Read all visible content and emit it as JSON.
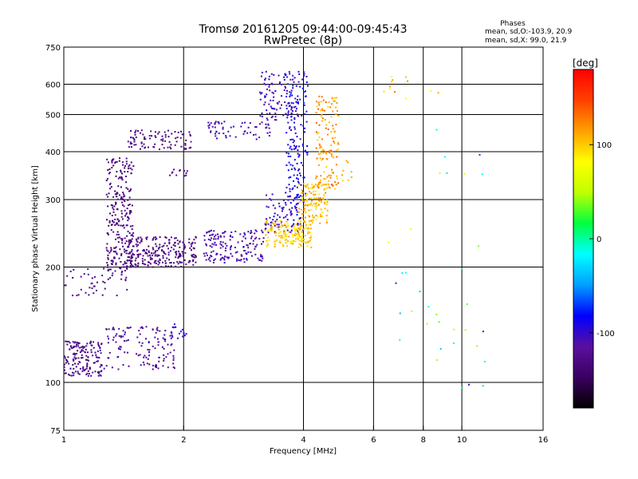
{
  "chart_data": {
    "type": "scatter",
    "title": "Tromsø 20161205 09:44:00-09:45:43",
    "subtitle": "RwPretec (8p)",
    "xlabel": "Frequency [MHz]",
    "ylabel": "Stationary phase Virtual Height [km]",
    "x_scale": "log",
    "y_scale": "log",
    "xlim": [
      1,
      16
    ],
    "ylim": [
      75,
      750
    ],
    "x_ticks": [
      1,
      2,
      4,
      6,
      8,
      10,
      16
    ],
    "y_ticks": [
      75,
      100,
      200,
      300,
      400,
      500,
      600,
      750
    ],
    "x_grid": [
      2,
      4,
      6,
      8,
      10
    ],
    "y_grid": [
      100,
      200,
      300,
      400,
      500,
      600
    ],
    "grid": true,
    "phase_stats": {
      "header": "Phases",
      "line1": "mean, sd,O:-103.9, 20.9",
      "line2": "mean, sd,X:  99.0, 21.9"
    },
    "colorbar": {
      "label": "[deg]",
      "min": -180,
      "max": 180,
      "ticks": [
        100,
        0,
        -100
      ],
      "colors": [
        "#000000",
        "#3b0060",
        "#5a0fa0",
        "#0000ff",
        "#00a0ff",
        "#00ffff",
        "#00ff40",
        "#c0ff00",
        "#ffff00",
        "#ffa000",
        "#ff4000",
        "#ff0000"
      ]
    },
    "clusters": [
      {
        "x": [
          1.0,
          1.25
        ],
        "y": [
          104,
          128
        ],
        "phase": [
          -145,
          -105
        ],
        "n": 160
      },
      {
        "x": [
          1.25,
          1.9
        ],
        "y": [
          108,
          140
        ],
        "phase": [
          -135,
          -100
        ],
        "n": 130
      },
      {
        "x": [
          1.85,
          2.05
        ],
        "y": [
          130,
          142
        ],
        "phase": [
          -115,
          -90
        ],
        "n": 18
      },
      {
        "x": [
          1.0,
          1.45
        ],
        "y": [
          168,
          200
        ],
        "phase": [
          -140,
          -115
        ],
        "n": 50
      },
      {
        "x": [
          1.28,
          1.5
        ],
        "y": [
          195,
          385
        ],
        "phase": [
          -145,
          -120
        ],
        "n": 260
      },
      {
        "x": [
          1.45,
          2.15
        ],
        "y": [
          200,
          240
        ],
        "phase": [
          -145,
          -115
        ],
        "n": 230
      },
      {
        "x": [
          1.45,
          2.1
        ],
        "y": [
          405,
          455
        ],
        "phase": [
          -140,
          -115
        ],
        "n": 90
      },
      {
        "x": [
          1.8,
          2.05
        ],
        "y": [
          345,
          360
        ],
        "phase": [
          -130,
          -110
        ],
        "n": 12
      },
      {
        "x": [
          2.25,
          3.2
        ],
        "y": [
          205,
          250
        ],
        "phase": [
          -125,
          -95
        ],
        "n": 160
      },
      {
        "x": [
          2.3,
          3.3
        ],
        "y": [
          430,
          480
        ],
        "phase": [
          -120,
          -95
        ],
        "n": 60
      },
      {
        "x": [
          3.1,
          3.9
        ],
        "y": [
          480,
          650
        ],
        "phase": [
          -120,
          -90
        ],
        "n": 110
      },
      {
        "x": [
          3.2,
          4.0
        ],
        "y": [
          245,
          310
        ],
        "phase": [
          -115,
          -85
        ],
        "n": 90
      },
      {
        "x": [
          3.6,
          4.1
        ],
        "y": [
          290,
          650
        ],
        "phase": [
          -110,
          -70
        ],
        "n": 150
      },
      {
        "x": [
          3.2,
          4.2
        ],
        "y": [
          225,
          265
        ],
        "phase": [
          80,
          115
        ],
        "n": 170
      },
      {
        "x": [
          3.9,
          4.6
        ],
        "y": [
          260,
          330
        ],
        "phase": [
          85,
          125
        ],
        "n": 120
      },
      {
        "x": [
          4.3,
          4.9
        ],
        "y": [
          320,
          560
        ],
        "phase": [
          95,
          140
        ],
        "n": 140
      },
      {
        "x": [
          4.9,
          5.3
        ],
        "y": [
          330,
          380
        ],
        "phase": [
          90,
          120
        ],
        "n": 8
      },
      {
        "x": [
          6.2,
          8.8
        ],
        "y": [
          540,
          640
        ],
        "phase": [
          70,
          130
        ],
        "n": 12
      },
      {
        "x": [
          6.5,
          11.8
        ],
        "y": [
          95,
          480
        ],
        "phase": [
          -120,
          120
        ],
        "n": 34
      }
    ]
  }
}
